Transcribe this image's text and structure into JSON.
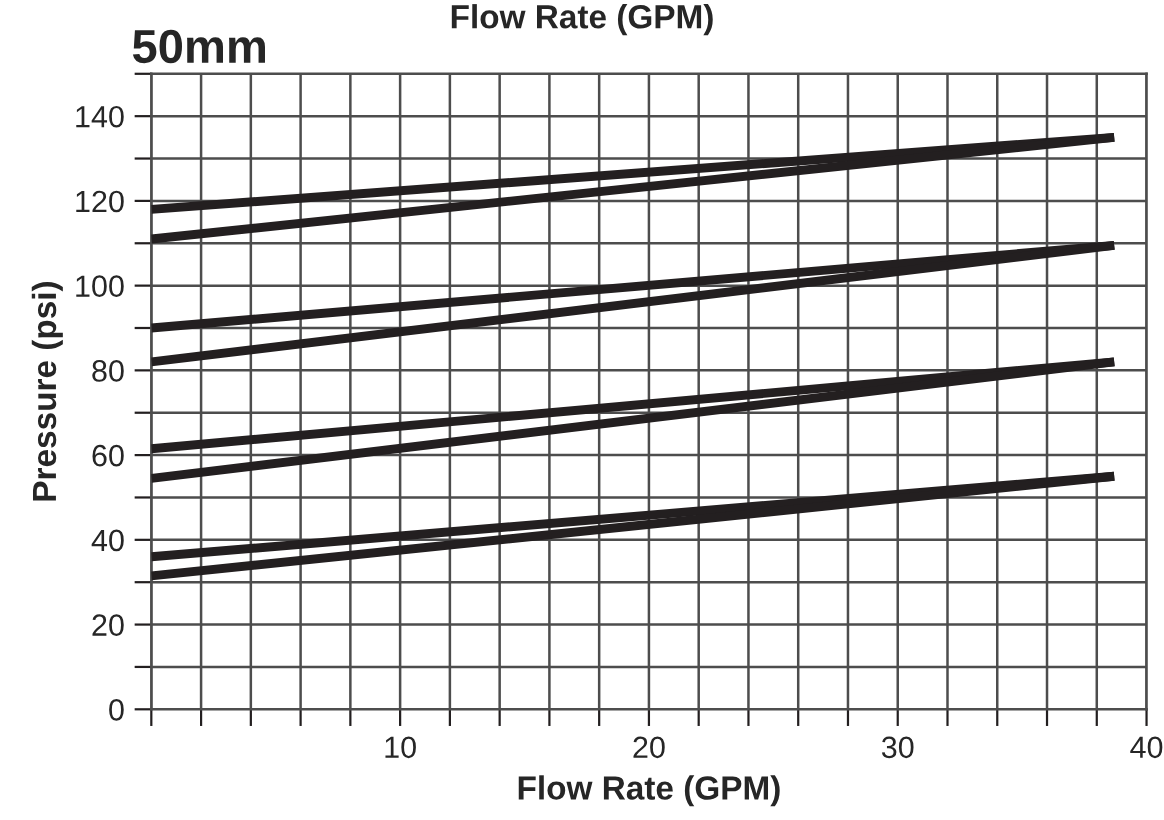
{
  "chart_data": {
    "type": "line",
    "title": "50mm",
    "xlabel": "Flow Rate (GPM)",
    "ylabel": "Pressure (psi)",
    "annotations": [
      "Flow Rate (GPM)"
    ],
    "x": [
      0,
      38.7
    ],
    "series": [
      {
        "color": "#231f20",
        "values": [
          118,
          135
        ]
      },
      {
        "color": "#231f20",
        "values": [
          111,
          135
        ]
      },
      {
        "color": "#231f20",
        "values": [
          90,
          109.5
        ]
      },
      {
        "color": "#231f20",
        "values": [
          82,
          109.5
        ]
      },
      {
        "color": "#231f20",
        "values": [
          61.5,
          82
        ]
      },
      {
        "color": "#231f20",
        "values": [
          54.5,
          82
        ]
      },
      {
        "color": "#231f20",
        "values": [
          36,
          55
        ]
      },
      {
        "color": "#231f20",
        "values": [
          31.5,
          55
        ]
      }
    ],
    "xlim": [
      0,
      40
    ],
    "xticks": [
      {
        "value": 0,
        "label": null
      },
      {
        "value": 2,
        "label": null
      },
      {
        "value": 4,
        "label": null
      },
      {
        "value": 6,
        "label": null
      },
      {
        "value": 8,
        "label": null
      },
      10,
      {
        "value": 12,
        "label": null
      },
      {
        "value": 14,
        "label": null
      },
      {
        "value": 16,
        "label": null
      },
      {
        "value": 18,
        "label": null
      },
      20,
      {
        "value": 22,
        "label": null
      },
      {
        "value": 24,
        "label": null
      },
      {
        "value": 26,
        "label": null
      },
      {
        "value": 28,
        "label": null
      },
      30,
      {
        "value": 32,
        "label": null
      },
      {
        "value": 34,
        "label": null
      },
      {
        "value": 36,
        "label": null
      },
      {
        "value": 38,
        "label": null
      },
      40
    ],
    "ylim": [
      0,
      150
    ],
    "yticks": [
      0,
      {
        "value": 10,
        "label": null
      },
      20,
      {
        "value": 30,
        "label": null
      },
      40,
      {
        "value": 50,
        "label": null
      },
      60,
      {
        "value": 70,
        "label": null
      },
      80,
      {
        "value": 90,
        "label": null
      },
      100,
      {
        "value": 110,
        "label": null
      },
      120,
      {
        "value": 130,
        "label": null
      },
      140,
      {
        "value": 150,
        "label": null
      }
    ],
    "grid": true,
    "marker": "none",
    "line_style": "solid",
    "legend": false
  }
}
